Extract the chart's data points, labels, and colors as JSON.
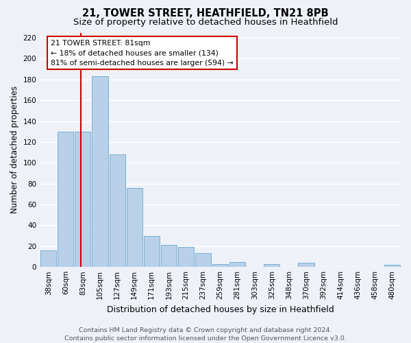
{
  "title": "21, TOWER STREET, HEATHFIELD, TN21 8PB",
  "subtitle": "Size of property relative to detached houses in Heathfield",
  "xlabel": "Distribution of detached houses by size in Heathfield",
  "ylabel": "Number of detached properties",
  "bar_labels": [
    "38sqm",
    "60sqm",
    "83sqm",
    "105sqm",
    "127sqm",
    "149sqm",
    "171sqm",
    "193sqm",
    "215sqm",
    "237sqm",
    "259sqm",
    "281sqm",
    "303sqm",
    "325sqm",
    "348sqm",
    "370sqm",
    "392sqm",
    "414sqm",
    "436sqm",
    "458sqm",
    "480sqm"
  ],
  "bar_values": [
    16,
    130,
    130,
    183,
    108,
    76,
    30,
    21,
    19,
    13,
    3,
    5,
    0,
    3,
    0,
    4,
    0,
    0,
    0,
    0,
    2
  ],
  "bar_color": "#b8d0e8",
  "bar_edge_color": "#7aafd4",
  "ylim": [
    0,
    225
  ],
  "yticks": [
    0,
    20,
    40,
    60,
    80,
    100,
    120,
    140,
    160,
    180,
    200,
    220
  ],
  "vline_color": "#cc0000",
  "vline_position": 1.87,
  "annotation_box_color": "#cc0000",
  "marker_label": "21 TOWER STREET: 81sqm",
  "annotation_line1": "← 18% of detached houses are smaller (134)",
  "annotation_line2": "81% of semi-detached houses are larger (594) →",
  "bg_color": "#eef2f8",
  "grid_color": "#ffffff",
  "title_fontsize": 10.5,
  "subtitle_fontsize": 9.5,
  "ylabel_fontsize": 8.5,
  "xlabel_fontsize": 9,
  "tick_fontsize": 7.5,
  "annotation_fontsize": 7.8,
  "footer_fontsize": 6.8,
  "footer_line1": "Contains HM Land Registry data © Crown copyright and database right 2024.",
  "footer_line2": "Contains public sector information licensed under the Open Government Licence v3.0."
}
